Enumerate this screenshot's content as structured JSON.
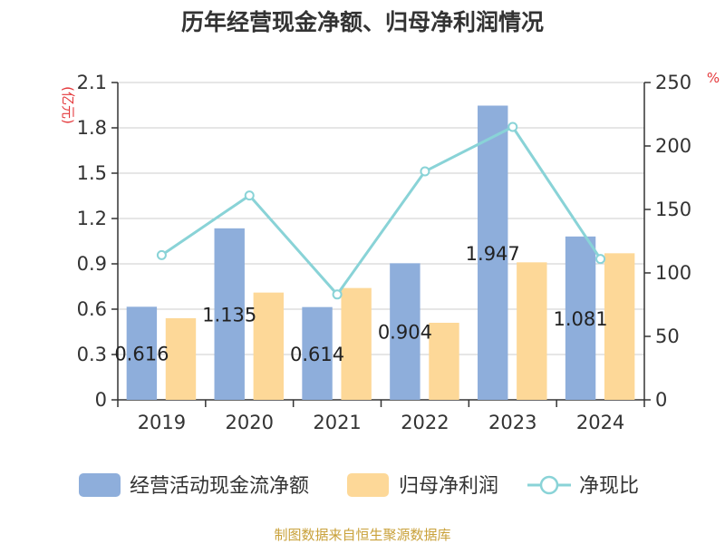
{
  "title": "历年经营现金净额、归母净利润情况",
  "source": "制图数据来自恒生聚源数据库",
  "colors": {
    "cash_flow": "#8eaedb",
    "net_profit": "#fdd898",
    "ratio_line": "#89d3d7",
    "axis": "#333333",
    "grid": "#cccccc",
    "unit_label": "#e4393c",
    "source": "#c9a13a"
  },
  "chart_data": {
    "type": "bar",
    "title": "历年经营现金净额、归母净利润情况",
    "categories": [
      "2019",
      "2020",
      "2021",
      "2022",
      "2023",
      "2024"
    ],
    "series": [
      {
        "name": "经营活动现金流净额",
        "type": "bar",
        "axis": "left",
        "values": [
          0.616,
          1.135,
          0.614,
          0.904,
          1.947,
          1.081
        ],
        "labels": [
          "0.616",
          "1.135",
          "0.614",
          "0.904",
          "1.947",
          "1.081"
        ]
      },
      {
        "name": "归母净利润",
        "type": "bar",
        "axis": "left",
        "values": [
          0.54,
          0.71,
          0.74,
          0.51,
          0.91,
          0.97
        ]
      },
      {
        "name": "净现比",
        "type": "line",
        "axis": "right",
        "values": [
          114,
          161,
          83,
          180,
          215,
          111
        ]
      }
    ],
    "left_axis": {
      "unit": "(亿元)",
      "ylim": [
        0,
        2.1
      ],
      "ticks": [
        "0",
        "0.3",
        "0.6",
        "0.9",
        "1.2",
        "1.5",
        "1.8",
        "2.1"
      ]
    },
    "right_axis": {
      "unit": "%",
      "ylim": [
        0,
        250
      ],
      "ticks": [
        "0",
        "50",
        "100",
        "150",
        "200",
        "250"
      ]
    },
    "grid": true,
    "legend_position": "bottom"
  }
}
